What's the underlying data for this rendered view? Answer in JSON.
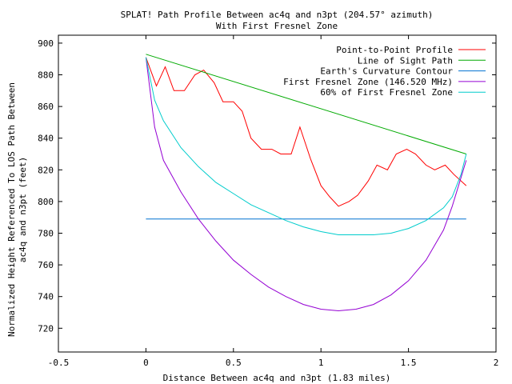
{
  "chart_data": {
    "type": "line",
    "title": "SPLAT! Path Profile Between ac4q and n3pt (204.57° azimuth)",
    "subtitle": "With First Fresnel Zone",
    "xlabel": "Distance Between ac4q and n3pt (1.83 miles)",
    "ylabel_line1": "Normalized Height Referenced To LOS Path Between",
    "ylabel_line2": "ac4q and n3pt (feet)",
    "xlim": [
      -0.5,
      2
    ],
    "ylim": [
      705,
      905
    ],
    "xticks": [
      -0.5,
      0,
      0.5,
      1,
      1.5,
      2
    ],
    "xtick_labels": [
      "-0.5",
      "0",
      "0.5",
      "1",
      "1.5",
      "2"
    ],
    "yticks": [
      720,
      740,
      760,
      780,
      800,
      820,
      840,
      860,
      880,
      900
    ],
    "ytick_labels": [
      "720",
      "740",
      "760",
      "780",
      "800",
      "820",
      "840",
      "860",
      "880",
      "900"
    ],
    "legend_position": "top-right",
    "series": [
      {
        "name": "Point-to-Point Profile",
        "color": "#ff0000",
        "x": [
          0,
          0.06,
          0.11,
          0.16,
          0.22,
          0.28,
          0.33,
          0.39,
          0.44,
          0.5,
          0.55,
          0.6,
          0.66,
          0.72,
          0.77,
          0.83,
          0.88,
          0.94,
          1.0,
          1.05,
          1.1,
          1.16,
          1.21,
          1.27,
          1.32,
          1.38,
          1.43,
          1.49,
          1.54,
          1.6,
          1.65,
          1.71,
          1.76,
          1.83
        ],
        "y": [
          891,
          873,
          885,
          870,
          870,
          880,
          883,
          875,
          863,
          863,
          857,
          840,
          833,
          833,
          830,
          830,
          847,
          827,
          810,
          803,
          797,
          800,
          804,
          813,
          823,
          820,
          830,
          833,
          830,
          823,
          820,
          823,
          817,
          810
        ]
      },
      {
        "name": "Line of Sight Path",
        "color": "#00aa00",
        "x": [
          0,
          1.83
        ],
        "y": [
          893,
          830
        ]
      },
      {
        "name": "Earth's Curvature Contour",
        "color": "#0070d0",
        "x": [
          0,
          1.83
        ],
        "y": [
          789,
          789
        ]
      },
      {
        "name": "First Fresnel Zone (146.520 MHz)",
        "color": "#9400d3",
        "x": [
          0,
          0.05,
          0.1,
          0.2,
          0.3,
          0.4,
          0.5,
          0.6,
          0.7,
          0.8,
          0.9,
          1.0,
          1.1,
          1.2,
          1.3,
          1.4,
          1.5,
          1.6,
          1.7,
          1.75,
          1.8,
          1.83
        ],
        "y": [
          891,
          847,
          826,
          806,
          789,
          775,
          763,
          754,
          746,
          740,
          735,
          732,
          731,
          732,
          735,
          741,
          750,
          763,
          782,
          797,
          815,
          826
        ]
      },
      {
        "name": "60% of First Fresnel Zone",
        "color": "#00cccc",
        "x": [
          0,
          0.05,
          0.1,
          0.2,
          0.3,
          0.4,
          0.5,
          0.6,
          0.7,
          0.8,
          0.9,
          1.0,
          1.1,
          1.2,
          1.3,
          1.4,
          1.5,
          1.6,
          1.7,
          1.75,
          1.8,
          1.83
        ],
        "y": [
          891,
          864,
          851,
          834,
          822,
          812,
          805,
          798,
          793,
          788,
          784,
          781,
          779,
          779,
          779,
          780,
          783,
          788,
          796,
          803,
          817,
          830
        ]
      }
    ]
  }
}
